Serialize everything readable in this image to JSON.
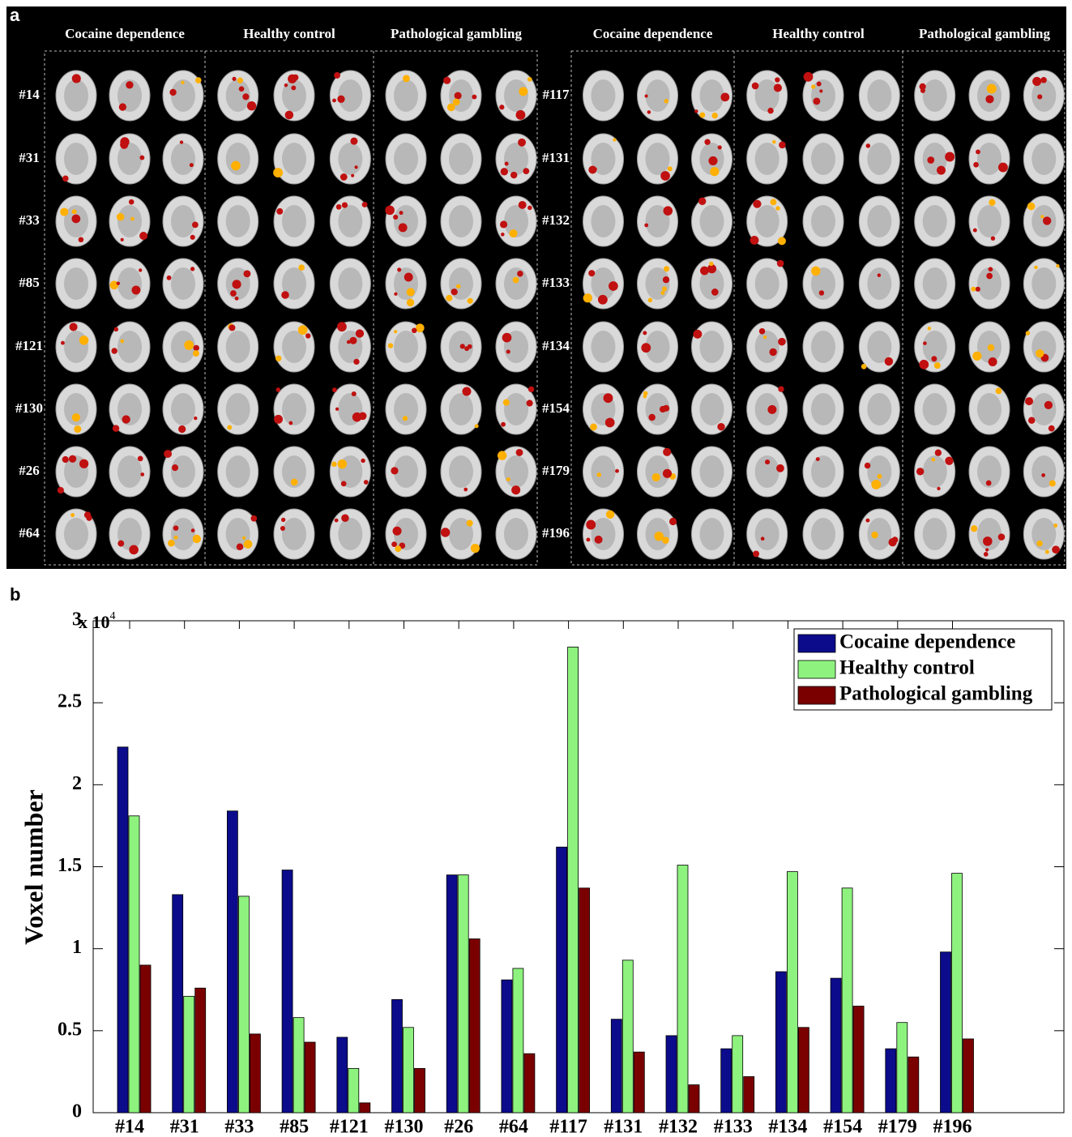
{
  "panel_a": {
    "label": "a",
    "left_groups": [
      "Cocaine dependence",
      "Healthy control",
      "Pathological gambling"
    ],
    "right_groups": [
      "Cocaine dependence",
      "Healthy control",
      "Pathological gambling"
    ],
    "left_rows": [
      "#14",
      "#31",
      "#33",
      "#85",
      "#121",
      "#130",
      "#26",
      "#64"
    ],
    "right_rows": [
      "#117",
      "#131",
      "#132",
      "#133",
      "#134",
      "#154",
      "#179",
      "#196"
    ]
  },
  "chart_data": {
    "type": "bar",
    "panel_label": "b",
    "ylabel": "Voxel number",
    "y_multiplier": {
      "base": "x 10",
      "exponent": "4"
    },
    "categories": [
      "#14",
      "#31",
      "#33",
      "#85",
      "#121",
      "#130",
      "#26",
      "#64",
      "#117",
      "#131",
      "#132",
      "#133",
      "#134",
      "#154",
      "#179",
      "#196"
    ],
    "series": [
      {
        "name": "Cocaine dependence",
        "color": "#0b0b8c",
        "values": [
          2.23,
          1.33,
          1.84,
          1.48,
          0.46,
          0.69,
          1.45,
          0.81,
          1.62,
          0.57,
          0.47,
          0.39,
          0.86,
          0.82,
          0.39,
          0.98
        ]
      },
      {
        "name": "Healthy control",
        "color": "#8ef27e",
        "values": [
          1.81,
          0.71,
          1.32,
          0.58,
          0.27,
          0.52,
          1.45,
          0.88,
          2.84,
          0.93,
          1.51,
          0.47,
          1.47,
          1.37,
          0.55,
          1.46
        ]
      },
      {
        "name": "Pathological gambling",
        "color": "#7a0000",
        "values": [
          0.9,
          0.76,
          0.48,
          0.43,
          0.06,
          0.27,
          1.06,
          0.36,
          1.37,
          0.37,
          0.17,
          0.22,
          0.52,
          0.65,
          0.34,
          0.45
        ]
      }
    ],
    "ylim": [
      0,
      3
    ],
    "yticks": [
      0,
      0.5,
      1,
      1.5,
      2,
      2.5,
      3
    ],
    "legend": "upper right"
  }
}
